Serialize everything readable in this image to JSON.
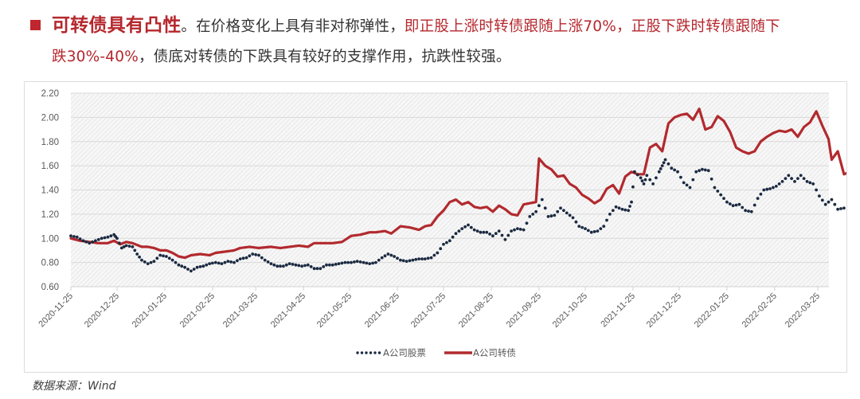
{
  "headline": {
    "bullet_color": "#c0262d",
    "lead": "可转债具有凸性",
    "lead_punct": "。",
    "text1": "在价格变化上具有非对称弹性，",
    "red_text": "即正股上涨时转债跟随上涨70%，正股下跌时转债跟随下跌30%-40%",
    "red_part1": "即正股上涨时转债跟随上涨70%，正股下跌时转债跟随下",
    "red_part2": "跌30%-40%",
    "text2": "，债底对转债的下跌具有较好的支撑作用，抗跌性较强。"
  },
  "source": "数据来源：Wind",
  "colors": {
    "stock": "#1b2a41",
    "bond": "#b22a2e",
    "grid": "#d9d9d9",
    "hatch": "#dcdcdc"
  },
  "chart_data": {
    "type": "line",
    "title": "",
    "xlabel": "",
    "ylabel": "",
    "ylim": [
      0.6,
      2.2
    ],
    "yticks": [
      "0.60",
      "0.80",
      "1.00",
      "1.20",
      "1.40",
      "1.60",
      "1.80",
      "2.00",
      "2.20"
    ],
    "grid": true,
    "background": "diagonal hatch",
    "legend_position": "bottom",
    "xticks": [
      "2020-11-25",
      "2020-12-25",
      "2021-01-25",
      "2021-02-25",
      "2021-03-25",
      "2021-04-25",
      "2021-05-25",
      "2021-06-25",
      "2021-07-25",
      "2021-08-25",
      "2021-09-25",
      "2021-10-25",
      "2021-11-25",
      "2021-12-25",
      "2022-01-25",
      "2022-02-25",
      "2022-03-25"
    ],
    "xtick_days": [
      0,
      30,
      61,
      92,
      120,
      151,
      181,
      212,
      242,
      273,
      304,
      334,
      365,
      395,
      426,
      457,
      485
    ],
    "x_max_day": 492,
    "series": [
      {
        "name": "A公司股票",
        "style": "dotted",
        "points": [
          [
            0,
            1.02
          ],
          [
            4,
            1.01
          ],
          [
            8,
            0.98
          ],
          [
            12,
            0.96
          ],
          [
            16,
            0.98
          ],
          [
            20,
            1.0
          ],
          [
            24,
            1.01
          ],
          [
            28,
            1.03
          ],
          [
            30,
            1.0
          ],
          [
            33,
            0.92
          ],
          [
            36,
            0.94
          ],
          [
            40,
            0.93
          ],
          [
            43,
            0.87
          ],
          [
            46,
            0.82
          ],
          [
            50,
            0.79
          ],
          [
            54,
            0.81
          ],
          [
            58,
            0.86
          ],
          [
            62,
            0.85
          ],
          [
            66,
            0.82
          ],
          [
            70,
            0.78
          ],
          [
            74,
            0.76
          ],
          [
            78,
            0.73
          ],
          [
            82,
            0.76
          ],
          [
            86,
            0.77
          ],
          [
            90,
            0.79
          ],
          [
            94,
            0.8
          ],
          [
            98,
            0.79
          ],
          [
            102,
            0.81
          ],
          [
            106,
            0.8
          ],
          [
            110,
            0.83
          ],
          [
            114,
            0.84
          ],
          [
            118,
            0.87
          ],
          [
            122,
            0.86
          ],
          [
            126,
            0.82
          ],
          [
            130,
            0.79
          ],
          [
            134,
            0.77
          ],
          [
            138,
            0.77
          ],
          [
            142,
            0.79
          ],
          [
            146,
            0.78
          ],
          [
            150,
            0.77
          ],
          [
            154,
            0.78
          ],
          [
            158,
            0.75
          ],
          [
            162,
            0.75
          ],
          [
            166,
            0.78
          ],
          [
            170,
            0.78
          ],
          [
            174,
            0.79
          ],
          [
            178,
            0.8
          ],
          [
            182,
            0.8
          ],
          [
            186,
            0.81
          ],
          [
            190,
            0.8
          ],
          [
            194,
            0.79
          ],
          [
            198,
            0.8
          ],
          [
            202,
            0.84
          ],
          [
            206,
            0.87
          ],
          [
            210,
            0.85
          ],
          [
            214,
            0.82
          ],
          [
            218,
            0.81
          ],
          [
            222,
            0.82
          ],
          [
            226,
            0.83
          ],
          [
            230,
            0.83
          ],
          [
            234,
            0.84
          ],
          [
            238,
            0.88
          ],
          [
            242,
            0.95
          ],
          [
            246,
            0.98
          ],
          [
            250,
            1.04
          ],
          [
            254,
            1.08
          ],
          [
            258,
            1.11
          ],
          [
            262,
            1.07
          ],
          [
            266,
            1.05
          ],
          [
            270,
            1.05
          ],
          [
            274,
            1.02
          ],
          [
            278,
            1.06
          ],
          [
            282,
            0.99
          ],
          [
            286,
            1.06
          ],
          [
            290,
            1.08
          ],
          [
            294,
            1.07
          ],
          [
            298,
            1.18
          ],
          [
            302,
            1.22
          ],
          [
            306,
            1.32
          ],
          [
            310,
            1.18
          ],
          [
            314,
            1.19
          ],
          [
            318,
            1.25
          ],
          [
            322,
            1.21
          ],
          [
            326,
            1.17
          ],
          [
            330,
            1.1
          ],
          [
            334,
            1.08
          ],
          [
            338,
            1.05
          ],
          [
            342,
            1.06
          ],
          [
            346,
            1.1
          ],
          [
            350,
            1.2
          ],
          [
            354,
            1.26
          ],
          [
            358,
            1.24
          ],
          [
            362,
            1.23
          ],
          [
            364,
            1.3
          ],
          [
            366,
            1.55
          ],
          [
            370,
            1.5
          ],
          [
            372,
            1.45
          ],
          [
            374,
            1.52
          ],
          [
            378,
            1.45
          ],
          [
            382,
            1.55
          ],
          [
            384,
            1.6
          ],
          [
            386,
            1.65
          ],
          [
            390,
            1.58
          ],
          [
            394,
            1.55
          ],
          [
            398,
            1.46
          ],
          [
            402,
            1.42
          ],
          [
            406,
            1.55
          ],
          [
            410,
            1.57
          ],
          [
            414,
            1.56
          ],
          [
            418,
            1.42
          ],
          [
            422,
            1.36
          ],
          [
            426,
            1.3
          ],
          [
            430,
            1.27
          ],
          [
            434,
            1.28
          ],
          [
            438,
            1.23
          ],
          [
            442,
            1.22
          ],
          [
            446,
            1.33
          ],
          [
            450,
            1.4
          ],
          [
            454,
            1.41
          ],
          [
            458,
            1.43
          ],
          [
            462,
            1.47
          ],
          [
            466,
            1.52
          ],
          [
            470,
            1.47
          ],
          [
            474,
            1.52
          ],
          [
            478,
            1.47
          ],
          [
            482,
            1.45
          ],
          [
            486,
            1.35
          ],
          [
            490,
            1.28
          ],
          [
            494,
            1.32
          ],
          [
            498,
            1.24
          ],
          [
            502,
            1.25
          ]
        ]
      },
      {
        "name": "A公司转债",
        "style": "solid",
        "points": [
          [
            0,
            1.0
          ],
          [
            6,
            0.98
          ],
          [
            12,
            0.97
          ],
          [
            18,
            0.96
          ],
          [
            24,
            0.96
          ],
          [
            28,
            0.98
          ],
          [
            32,
            0.95
          ],
          [
            36,
            0.97
          ],
          [
            40,
            0.96
          ],
          [
            46,
            0.93
          ],
          [
            50,
            0.93
          ],
          [
            54,
            0.92
          ],
          [
            58,
            0.9
          ],
          [
            62,
            0.9
          ],
          [
            66,
            0.88
          ],
          [
            70,
            0.85
          ],
          [
            74,
            0.84
          ],
          [
            78,
            0.86
          ],
          [
            84,
            0.87
          ],
          [
            90,
            0.86
          ],
          [
            94,
            0.88
          ],
          [
            100,
            0.89
          ],
          [
            106,
            0.9
          ],
          [
            110,
            0.92
          ],
          [
            116,
            0.93
          ],
          [
            122,
            0.92
          ],
          [
            130,
            0.93
          ],
          [
            136,
            0.92
          ],
          [
            142,
            0.93
          ],
          [
            148,
            0.94
          ],
          [
            154,
            0.93
          ],
          [
            158,
            0.96
          ],
          [
            164,
            0.96
          ],
          [
            170,
            0.96
          ],
          [
            176,
            0.97
          ],
          [
            182,
            1.02
          ],
          [
            188,
            1.03
          ],
          [
            194,
            1.05
          ],
          [
            198,
            1.05
          ],
          [
            204,
            1.06
          ],
          [
            208,
            1.04
          ],
          [
            214,
            1.1
          ],
          [
            220,
            1.09
          ],
          [
            226,
            1.07
          ],
          [
            230,
            1.1
          ],
          [
            234,
            1.11
          ],
          [
            238,
            1.18
          ],
          [
            242,
            1.23
          ],
          [
            246,
            1.3
          ],
          [
            250,
            1.32
          ],
          [
            254,
            1.28
          ],
          [
            258,
            1.3
          ],
          [
            262,
            1.26
          ],
          [
            266,
            1.25
          ],
          [
            270,
            1.26
          ],
          [
            274,
            1.22
          ],
          [
            278,
            1.27
          ],
          [
            282,
            1.24
          ],
          [
            286,
            1.2
          ],
          [
            290,
            1.19
          ],
          [
            294,
            1.28
          ],
          [
            298,
            1.29
          ],
          [
            302,
            1.3
          ],
          [
            304,
            1.66
          ],
          [
            308,
            1.6
          ],
          [
            312,
            1.57
          ],
          [
            316,
            1.51
          ],
          [
            320,
            1.52
          ],
          [
            324,
            1.45
          ],
          [
            328,
            1.42
          ],
          [
            332,
            1.36
          ],
          [
            336,
            1.33
          ],
          [
            340,
            1.29
          ],
          [
            344,
            1.32
          ],
          [
            348,
            1.41
          ],
          [
            352,
            1.44
          ],
          [
            356,
            1.37
          ],
          [
            360,
            1.51
          ],
          [
            364,
            1.55
          ],
          [
            368,
            1.53
          ],
          [
            372,
            1.53
          ],
          [
            376,
            1.75
          ],
          [
            380,
            1.78
          ],
          [
            384,
            1.72
          ],
          [
            388,
            1.95
          ],
          [
            392,
            2.0
          ],
          [
            396,
            2.02
          ],
          [
            400,
            2.03
          ],
          [
            404,
            1.98
          ],
          [
            408,
            2.07
          ],
          [
            412,
            1.9
          ],
          [
            416,
            1.92
          ],
          [
            420,
            2.01
          ],
          [
            424,
            1.97
          ],
          [
            428,
            1.88
          ],
          [
            432,
            1.75
          ],
          [
            436,
            1.72
          ],
          [
            440,
            1.7
          ],
          [
            444,
            1.72
          ],
          [
            448,
            1.8
          ],
          [
            452,
            1.84
          ],
          [
            456,
            1.87
          ],
          [
            460,
            1.89
          ],
          [
            464,
            1.88
          ],
          [
            468,
            1.9
          ],
          [
            472,
            1.84
          ],
          [
            476,
            1.92
          ],
          [
            480,
            1.96
          ],
          [
            484,
            2.05
          ],
          [
            488,
            1.93
          ],
          [
            492,
            1.82
          ],
          [
            494,
            1.65
          ],
          [
            498,
            1.72
          ],
          [
            502,
            1.53
          ],
          [
            506,
            1.55
          ]
        ]
      }
    ]
  }
}
